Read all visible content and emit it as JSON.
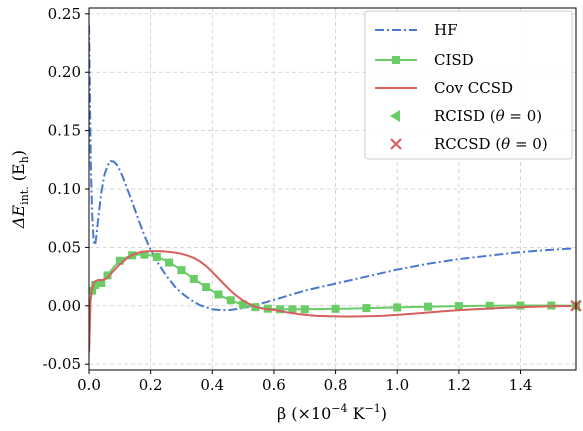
{
  "chart_data": {
    "type": "line",
    "xlabel_pre": "β (×10",
    "xlabel_sup": "−4",
    "xlabel_mid": " K",
    "xlabel_sup2": "−1",
    "xlabel_post": ")",
    "ylabel_pre": "ΔE",
    "ylabel_sub": "int.",
    "ylabel_post": " (E",
    "ylabel_sub2": "h",
    "ylabel_end": ")",
    "xlim": [
      0.0,
      1.58
    ],
    "ylim": [
      -0.055,
      0.255
    ],
    "grid": true,
    "legend_position": "top-right",
    "xticks": [
      0.0,
      0.2,
      0.4,
      0.6,
      0.8,
      1.0,
      1.2,
      1.4
    ],
    "xtick_labels": [
      "0.0",
      "0.2",
      "0.4",
      "0.6",
      "0.8",
      "1.0",
      "1.2",
      "1.4"
    ],
    "yticks": [
      -0.05,
      0.0,
      0.05,
      0.1,
      0.15,
      0.2,
      0.25
    ],
    "ytick_labels": [
      "-0.05",
      "0.00",
      "0.05",
      "0.10",
      "0.15",
      "0.20",
      "0.25"
    ],
    "series": [
      {
        "name": "HF",
        "style": "dashdot",
        "color": "#4878cf",
        "x": [
          0.0,
          0.003,
          0.006,
          0.01,
          0.015,
          0.02,
          0.025,
          0.03,
          0.04,
          0.05,
          0.06,
          0.07,
          0.08,
          0.09,
          0.1,
          0.11,
          0.12,
          0.13,
          0.14,
          0.16,
          0.18,
          0.2,
          0.22,
          0.25,
          0.28,
          0.3,
          0.33,
          0.36,
          0.4,
          0.43,
          0.46,
          0.5,
          0.53,
          0.56,
          0.6,
          0.65,
          0.7,
          0.8,
          0.9,
          1.0,
          1.1,
          1.2,
          1.3,
          1.4,
          1.5,
          1.57
        ],
        "y": [
          0.24,
          0.18,
          0.12,
          0.08,
          0.055,
          0.052,
          0.062,
          0.075,
          0.097,
          0.112,
          0.12,
          0.124,
          0.1235,
          0.121,
          0.116,
          0.11,
          0.103,
          0.096,
          0.089,
          0.074,
          0.06,
          0.048,
          0.038,
          0.026,
          0.016,
          0.011,
          0.005,
          0.0005,
          -0.003,
          -0.0038,
          -0.0035,
          -0.002,
          0.0,
          0.002,
          0.005,
          0.009,
          0.013,
          0.019,
          0.025,
          0.031,
          0.036,
          0.04,
          0.043,
          0.046,
          0.048,
          0.049
        ]
      },
      {
        "name": "CISD",
        "style": "solid-square",
        "color": "#6acc65",
        "x": [
          0.0,
          0.005,
          0.01,
          0.015,
          0.02,
          0.03,
          0.04,
          0.05,
          0.06,
          0.08,
          0.1,
          0.12,
          0.14,
          0.16,
          0.18,
          0.2,
          0.22,
          0.24,
          0.26,
          0.28,
          0.3,
          0.32,
          0.34,
          0.36,
          0.38,
          0.4,
          0.42,
          0.44,
          0.46,
          0.48,
          0.5,
          0.52,
          0.54,
          0.56,
          0.58,
          0.6,
          0.62,
          0.64,
          0.66,
          0.68,
          0.7,
          0.75,
          0.8,
          0.85,
          0.9,
          0.95,
          1.0,
          1.05,
          1.1,
          1.15,
          1.2,
          1.25,
          1.3,
          1.35,
          1.4,
          1.45,
          1.5,
          1.55,
          1.58
        ],
        "y": [
          -0.04,
          0.004,
          0.013,
          0.017,
          0.0178,
          0.0183,
          0.0195,
          0.022,
          0.026,
          0.033,
          0.0385,
          0.0415,
          0.0432,
          0.0438,
          0.0438,
          0.0432,
          0.0418,
          0.0398,
          0.037,
          0.034,
          0.0305,
          0.0268,
          0.023,
          0.0195,
          0.016,
          0.0127,
          0.0097,
          0.007,
          0.0047,
          0.0027,
          0.001,
          -0.0002,
          -0.0012,
          -0.002,
          -0.0025,
          -0.0028,
          -0.003,
          -0.003,
          -0.003,
          -0.003,
          -0.003,
          -0.0028,
          -0.0026,
          -0.0024,
          -0.002,
          -0.0017,
          -0.0014,
          -0.001,
          -0.0008,
          -0.0005,
          -0.0003,
          -0.0001,
          0.0,
          0.0001,
          0.0002,
          0.0002,
          0.0002,
          0.0001,
          0.0001
        ]
      },
      {
        "name": "Cov CCSD",
        "style": "solid",
        "color": "#d65f5f",
        "x": [
          0.0,
          0.005,
          0.01,
          0.015,
          0.02,
          0.03,
          0.04,
          0.05,
          0.06,
          0.08,
          0.1,
          0.12,
          0.14,
          0.16,
          0.18,
          0.2,
          0.22,
          0.24,
          0.26,
          0.28,
          0.3,
          0.32,
          0.34,
          0.36,
          0.38,
          0.4,
          0.42,
          0.44,
          0.46,
          0.48,
          0.5,
          0.52,
          0.54,
          0.56,
          0.58,
          0.6,
          0.62,
          0.64,
          0.66,
          0.68,
          0.7,
          0.72,
          0.74,
          0.76,
          0.78,
          0.8,
          0.83,
          0.86,
          0.9,
          0.95,
          1.0,
          1.05,
          1.1,
          1.15,
          1.2,
          1.3,
          1.4,
          1.5,
          1.57
        ],
        "y": [
          -0.04,
          0.006,
          0.014,
          0.019,
          0.021,
          0.022,
          0.022,
          0.0225,
          0.024,
          0.03,
          0.0355,
          0.04,
          0.0435,
          0.0455,
          0.0465,
          0.0468,
          0.0468,
          0.0466,
          0.0462,
          0.0455,
          0.0445,
          0.043,
          0.041,
          0.038,
          0.034,
          0.029,
          0.0235,
          0.018,
          0.0128,
          0.0083,
          0.0045,
          0.0015,
          -0.0008,
          -0.0022,
          -0.003,
          -0.0035,
          -0.0045,
          -0.0055,
          -0.0063,
          -0.0071,
          -0.0077,
          -0.0082,
          -0.0086,
          -0.0088,
          -0.009,
          -0.0091,
          -0.0092,
          -0.0092,
          -0.009,
          -0.0086,
          -0.0078,
          -0.0068,
          -0.0058,
          -0.0047,
          -0.0037,
          -0.0023,
          -0.0012,
          -0.0004,
          -0.0002
        ]
      },
      {
        "name": "RCISD (θ=0)",
        "style": "marker-triangle-left",
        "color": "#6acc65",
        "x": [
          1.58
        ],
        "y": [
          0.0
        ]
      },
      {
        "name": "RCCSD (θ=0)",
        "style": "marker-x",
        "color": "#d65f5f",
        "x": [
          1.58
        ],
        "y": [
          0.0
        ]
      }
    ],
    "legend": [
      {
        "label": "HF"
      },
      {
        "label": "CISD"
      },
      {
        "label": "Cov CCSD"
      },
      {
        "label_pre": "RCISD (",
        "label_theta": "θ",
        "label_post": " = 0)"
      },
      {
        "label_pre": "RCCSD (",
        "label_theta": "θ",
        "label_post": " = 0)"
      }
    ]
  }
}
